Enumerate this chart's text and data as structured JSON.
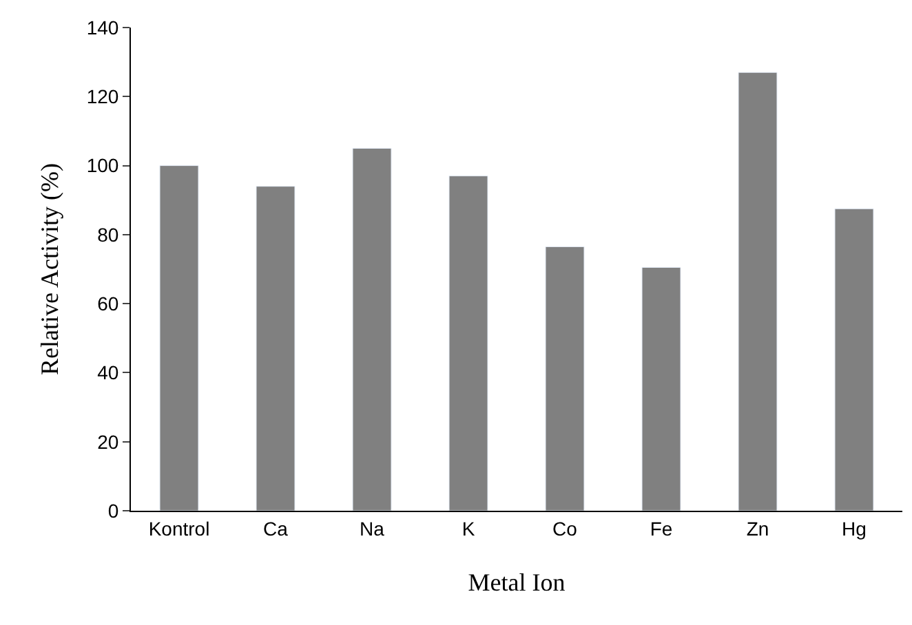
{
  "chart_data": {
    "type": "bar",
    "xlabel": "Metal Ion",
    "ylabel": "Relative Activity (%)",
    "categories": [
      "Kontrol",
      "Ca",
      "Na",
      "K",
      "Co",
      "Fe",
      "Zn",
      "Hg"
    ],
    "values": [
      100,
      94,
      105,
      97,
      76.5,
      70.5,
      127,
      87.5
    ],
    "color": "#808080",
    "ylim": [
      0,
      140
    ],
    "yticks": [
      0,
      20,
      40,
      60,
      80,
      100,
      120,
      140
    ]
  }
}
